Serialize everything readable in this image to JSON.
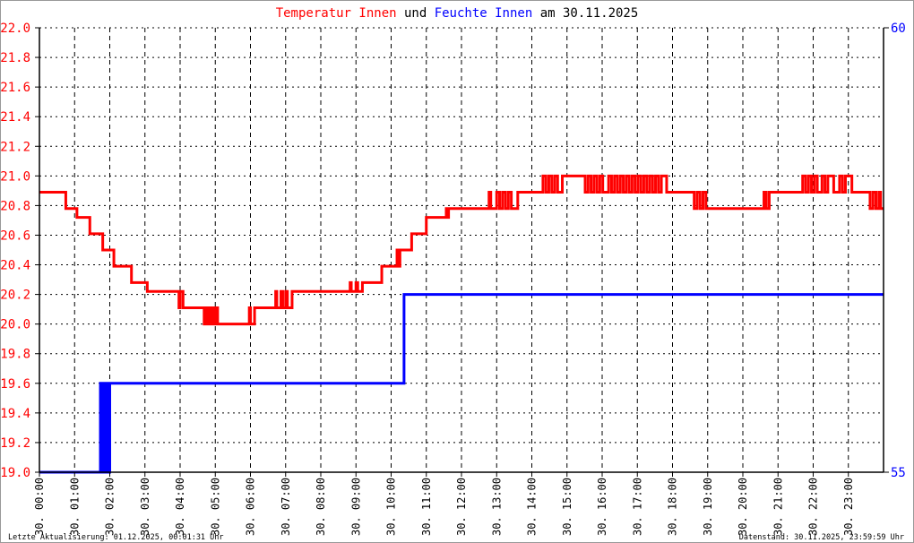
{
  "chart_data": {
    "type": "line",
    "title_parts": [
      {
        "text": "Temperatur Innen",
        "color": "#ff0000"
      },
      {
        "text": " und ",
        "color": "#000000"
      },
      {
        "text": "Feuchte Innen",
        "color": "#0000ff"
      },
      {
        "text": " am 30.11.2025",
        "color": "#000000"
      }
    ],
    "x_range": [
      "00:00",
      "24:00"
    ],
    "x_tick_labels": [
      "30. 00:00",
      "30. 01:00",
      "30. 02:00",
      "30. 03:00",
      "30. 04:00",
      "30. 05:00",
      "30. 06:00",
      "30. 07:00",
      "30. 08:00",
      "30. 09:00",
      "30. 10:00",
      "30. 11:00",
      "30. 12:00",
      "30. 13:00",
      "30. 14:00",
      "30. 15:00",
      "30. 16:00",
      "30. 17:00",
      "30. 18:00",
      "30. 19:00",
      "30. 20:00",
      "30. 21:00",
      "30. 22:00",
      "30. 23:00"
    ],
    "y_left": {
      "range": [
        19.0,
        22.0
      ],
      "ticks": [
        "19.0",
        "19.2",
        "19.4",
        "19.6",
        "19.8",
        "20.0",
        "20.2",
        "20.4",
        "20.6",
        "20.8",
        "21.0",
        "21.2",
        "21.4",
        "21.6",
        "21.8",
        "22.0"
      ],
      "color": "#ff0000"
    },
    "y_right": {
      "range": [
        55,
        60
      ],
      "ticks": [
        "55",
        "60"
      ],
      "color": "#0000ff"
    },
    "grid": true,
    "step": true,
    "series": [
      {
        "name": "Temperatur Innen",
        "axis": "left",
        "color": "#ff0000",
        "points": [
          [
            "00:00",
            20.89
          ],
          [
            "00:45",
            20.78
          ],
          [
            "01:04",
            20.72
          ],
          [
            "01:26",
            20.61
          ],
          [
            "01:48",
            20.5
          ],
          [
            "02:07",
            20.39
          ],
          [
            "02:37",
            20.28
          ],
          [
            "03:04",
            20.22
          ],
          [
            "03:58",
            20.11
          ],
          [
            "04:00",
            20.22
          ],
          [
            "04:05",
            20.11
          ],
          [
            "04:41",
            20.0
          ],
          [
            "04:44",
            20.11
          ],
          [
            "04:47",
            20.0
          ],
          [
            "04:50",
            20.11
          ],
          [
            "04:53",
            20.0
          ],
          [
            "04:56",
            20.11
          ],
          [
            "04:59",
            20.0
          ],
          [
            "05:02",
            20.11
          ],
          [
            "05:04",
            20.0
          ],
          [
            "05:58",
            20.11
          ],
          [
            "06:00",
            20.0
          ],
          [
            "06:07",
            20.11
          ],
          [
            "06:43",
            20.22
          ],
          [
            "06:45",
            20.11
          ],
          [
            "06:52",
            20.22
          ],
          [
            "06:55",
            20.11
          ],
          [
            "07:00",
            20.22
          ],
          [
            "07:03",
            20.11
          ],
          [
            "07:11",
            20.22
          ],
          [
            "08:50",
            20.28
          ],
          [
            "08:52",
            20.22
          ],
          [
            "09:00",
            20.28
          ],
          [
            "09:03",
            20.22
          ],
          [
            "09:11",
            20.28
          ],
          [
            "09:44",
            20.39
          ],
          [
            "10:10",
            20.5
          ],
          [
            "10:13",
            20.39
          ],
          [
            "10:15",
            20.5
          ],
          [
            "10:35",
            20.61
          ],
          [
            "11:00",
            20.72
          ],
          [
            "11:34",
            20.78
          ],
          [
            "11:36",
            20.72
          ],
          [
            "11:38",
            20.78
          ],
          [
            "12:47",
            20.89
          ],
          [
            "12:50",
            20.78
          ],
          [
            "13:00",
            20.89
          ],
          [
            "13:05",
            20.78
          ],
          [
            "13:10",
            20.89
          ],
          [
            "13:15",
            20.78
          ],
          [
            "13:20",
            20.89
          ],
          [
            "13:25",
            20.78
          ],
          [
            "13:36",
            20.89
          ],
          [
            "14:19",
            21.0
          ],
          [
            "14:24",
            20.89
          ],
          [
            "14:29",
            21.0
          ],
          [
            "14:34",
            20.89
          ],
          [
            "14:39",
            21.0
          ],
          [
            "14:44",
            20.89
          ],
          [
            "14:52",
            21.0
          ],
          [
            "15:31",
            20.89
          ],
          [
            "15:36",
            21.0
          ],
          [
            "15:41",
            20.89
          ],
          [
            "15:46",
            21.0
          ],
          [
            "15:51",
            20.89
          ],
          [
            "15:56",
            21.0
          ],
          [
            "16:01",
            20.89
          ],
          [
            "16:11",
            21.0
          ],
          [
            "16:16",
            20.89
          ],
          [
            "16:21",
            21.0
          ],
          [
            "16:26",
            20.89
          ],
          [
            "16:31",
            21.0
          ],
          [
            "16:36",
            20.89
          ],
          [
            "16:41",
            21.0
          ],
          [
            "16:46",
            20.89
          ],
          [
            "16:51",
            21.0
          ],
          [
            "16:56",
            20.89
          ],
          [
            "17:01",
            21.0
          ],
          [
            "17:06",
            20.89
          ],
          [
            "17:11",
            21.0
          ],
          [
            "17:16",
            20.89
          ],
          [
            "17:21",
            21.0
          ],
          [
            "17:26",
            20.89
          ],
          [
            "17:31",
            21.0
          ],
          [
            "17:36",
            20.89
          ],
          [
            "17:41",
            21.0
          ],
          [
            "17:50",
            20.89
          ],
          [
            "18:37",
            20.78
          ],
          [
            "18:42",
            20.89
          ],
          [
            "18:47",
            20.78
          ],
          [
            "18:52",
            20.89
          ],
          [
            "18:57",
            20.78
          ],
          [
            "20:36",
            20.89
          ],
          [
            "20:40",
            20.78
          ],
          [
            "20:45",
            20.89
          ],
          [
            "21:42",
            21.0
          ],
          [
            "21:47",
            20.89
          ],
          [
            "21:52",
            21.0
          ],
          [
            "21:57",
            20.89
          ],
          [
            "22:02",
            21.0
          ],
          [
            "22:07",
            20.89
          ],
          [
            "22:15",
            21.0
          ],
          [
            "22:20",
            20.89
          ],
          [
            "22:25",
            21.0
          ],
          [
            "22:35",
            20.89
          ],
          [
            "22:45",
            21.0
          ],
          [
            "22:50",
            20.89
          ],
          [
            "22:55",
            21.0
          ],
          [
            "23:06",
            20.89
          ],
          [
            "23:37",
            20.78
          ],
          [
            "23:42",
            20.89
          ],
          [
            "23:47",
            20.78
          ],
          [
            "23:52",
            20.89
          ],
          [
            "23:55",
            20.78
          ],
          [
            "24:00",
            20.78
          ]
        ]
      },
      {
        "name": "Feuchte Innen",
        "axis": "right",
        "color": "#0000ff",
        "points": [
          [
            "00:00",
            55
          ],
          [
            "01:44",
            56
          ],
          [
            "01:46",
            55
          ],
          [
            "01:50",
            56
          ],
          [
            "01:52",
            55
          ],
          [
            "01:55",
            56
          ],
          [
            "01:57",
            55
          ],
          [
            "02:00",
            56
          ],
          [
            "10:22",
            57
          ],
          [
            "24:00",
            57
          ]
        ]
      }
    ]
  },
  "footer": {
    "left": "Letzte Aktualisierung: 01.12.2025, 00:01:31 Uhr",
    "right": "Datenstand: 30.11.2025, 23:59:59 Uhr"
  }
}
